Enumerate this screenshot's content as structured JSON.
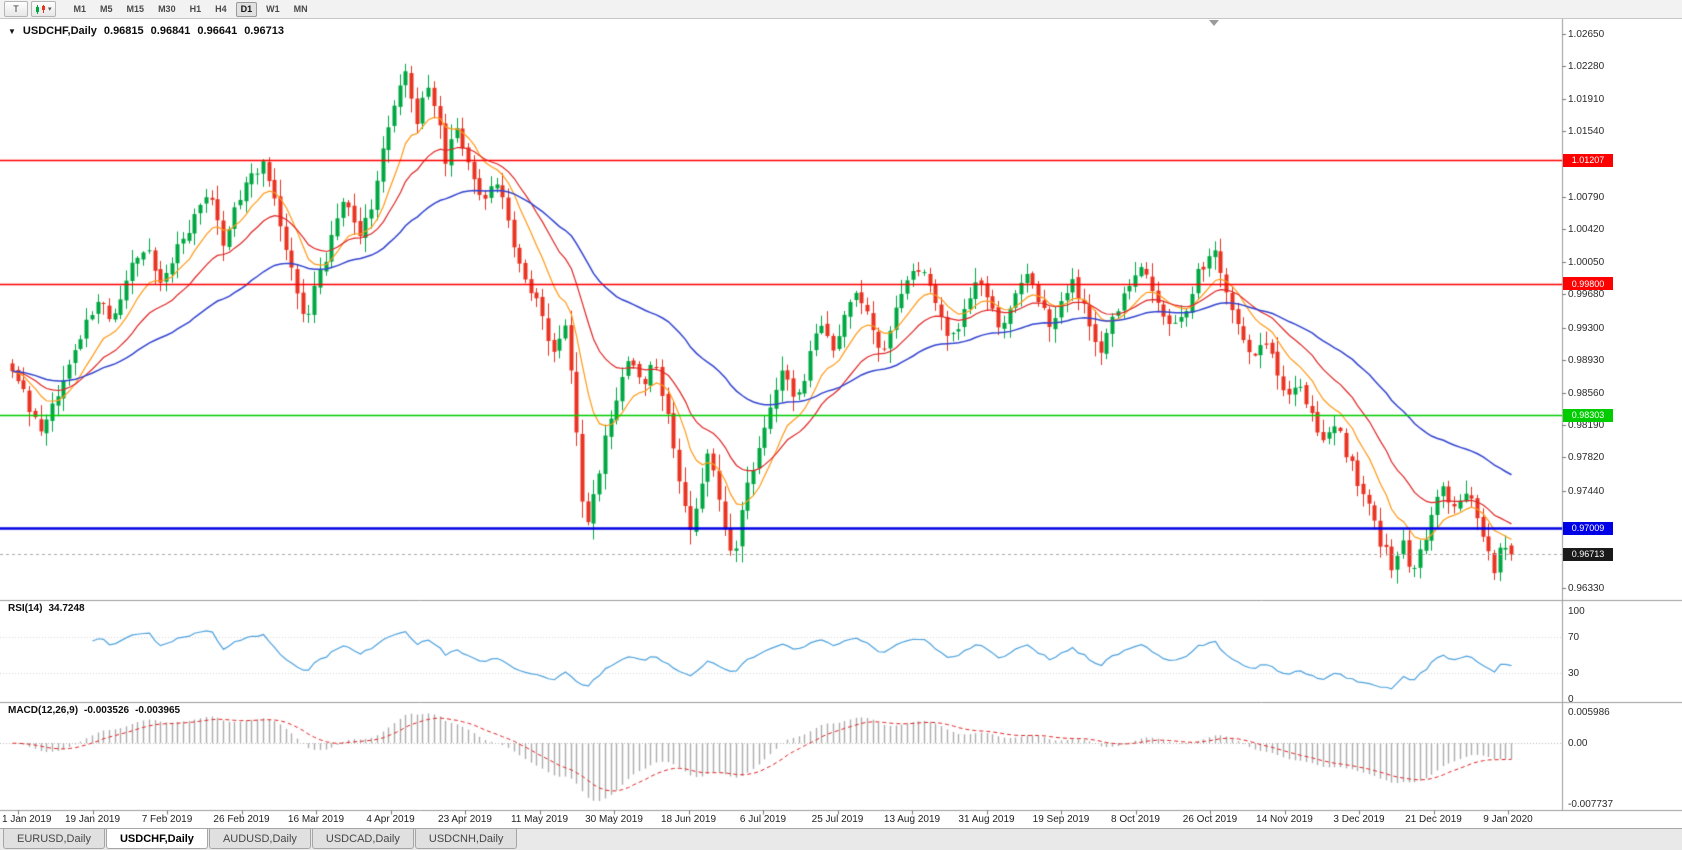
{
  "toolbar": {
    "pointer_label": "T",
    "chart_type_caret": "▾",
    "timeframes": [
      "M1",
      "M5",
      "M15",
      "M30",
      "H1",
      "H4",
      "D1",
      "W1",
      "MN"
    ],
    "active_timeframe": "D1"
  },
  "window": {
    "menu_icon": "▼",
    "symbol_title": "USDCHF,Daily",
    "ohlc": {
      "open": "0.96815",
      "high": "0.96841",
      "low": "0.96641",
      "close": "0.96713"
    }
  },
  "tabs": [
    {
      "label": "EURUSD,Daily",
      "active": false
    },
    {
      "label": "USDCHF,Daily",
      "active": true
    },
    {
      "label": "AUDUSD,Daily",
      "active": false
    },
    {
      "label": "USDCAD,Daily",
      "active": false
    },
    {
      "label": "USDCNH,Daily",
      "active": false
    }
  ],
  "chart_data": {
    "type": "candlestick",
    "symbol": "USDCHF",
    "timeframe": "Daily",
    "bars": 264,
    "seed": 11,
    "noise": 0.0016,
    "wick_noise": 0.0014,
    "candle_up_color": "#00A843",
    "candle_down_color": "#E93323",
    "y_axis": {
      "min": 0.9633,
      "max": 1.0265,
      "ticks": [
        "1.02650",
        "1.02280",
        "1.01910",
        "1.01540",
        "1.00790",
        "1.00420",
        "1.00050",
        "0.99680",
        "0.99300",
        "0.98930",
        "0.98560",
        "0.98190",
        "0.97820",
        "0.97440",
        "0.96330"
      ]
    },
    "x_axis": {
      "ticks": [
        "1 Jan 2019",
        "19 Jan 2019",
        "7 Feb 2019",
        "26 Feb 2019",
        "16 Mar 2019",
        "4 Apr 2019",
        "23 Apr 2019",
        "11 May 2019",
        "30 May 2019",
        "18 Jun 2019",
        "6 Jul 2019",
        "25 Jul 2019",
        "13 Aug 2019",
        "31 Aug 2019",
        "19 Sep 2019",
        "8 Oct 2019",
        "26 Oct 2019",
        "14 Nov 2019",
        "3 Dec 2019",
        "21 Dec 2019",
        "9 Jan 2020"
      ]
    },
    "levels": [
      {
        "value": 1.01207,
        "label": "1.01207",
        "color": "#FF0000",
        "width": 1.6
      },
      {
        "value": 0.998,
        "label": "0.99800",
        "color": "#FF0000",
        "width": 1.6
      },
      {
        "value": 0.98303,
        "label": "0.98303",
        "color": "#00CC00",
        "width": 1.6
      },
      {
        "value": 0.97009,
        "label": "0.97009",
        "color": "#0000E6",
        "width": 2.5
      }
    ],
    "current_price": {
      "value": 0.96713,
      "label": "0.96713",
      "tag_color": "#1a1a1a",
      "line_color": "#aaaaaa"
    },
    "moving_averages": [
      {
        "period": 10,
        "color": "#FF9A18",
        "width": 1.2
      },
      {
        "period": 21,
        "color": "#E02626",
        "width": 1.2
      },
      {
        "period": 50,
        "color": "#3344D0",
        "width": 1.5
      }
    ],
    "last_bar": {
      "o": 0.96815,
      "h": 0.96841,
      "l": 0.96641,
      "c": 0.96713
    },
    "price_waypoints": [
      [
        0.0,
        0.988
      ],
      [
        0.01,
        0.9846
      ],
      [
        0.019,
        0.9812
      ],
      [
        0.032,
        0.9862
      ],
      [
        0.046,
        0.992
      ],
      [
        0.057,
        0.9962
      ],
      [
        0.067,
        0.9936
      ],
      [
        0.079,
        0.9994
      ],
      [
        0.089,
        1.003
      ],
      [
        0.099,
        0.9978
      ],
      [
        0.112,
        1.0024
      ],
      [
        0.124,
        1.007
      ],
      [
        0.132,
        1.0088
      ],
      [
        0.14,
        1.0026
      ],
      [
        0.149,
        1.0064
      ],
      [
        0.159,
        1.0108
      ],
      [
        0.168,
        1.0124
      ],
      [
        0.177,
        1.0058
      ],
      [
        0.186,
        0.9992
      ],
      [
        0.195,
        0.9938
      ],
      [
        0.204,
        0.9988
      ],
      [
        0.214,
        1.0034
      ],
      [
        0.223,
        1.0082
      ],
      [
        0.231,
        1.0028
      ],
      [
        0.24,
        1.0074
      ],
      [
        0.248,
        1.0134
      ],
      [
        0.256,
        1.0194
      ],
      [
        0.263,
        1.0224
      ],
      [
        0.269,
        1.0162
      ],
      [
        0.275,
        1.0206
      ],
      [
        0.282,
        1.0176
      ],
      [
        0.289,
        1.0122
      ],
      [
        0.296,
        1.0162
      ],
      [
        0.304,
        1.012
      ],
      [
        0.314,
        1.0072
      ],
      [
        0.324,
        1.0096
      ],
      [
        0.334,
        1.003
      ],
      [
        0.344,
        0.9984
      ],
      [
        0.354,
        0.9938
      ],
      [
        0.362,
        0.9902
      ],
      [
        0.368,
        0.9936
      ],
      [
        0.374,
        0.986
      ],
      [
        0.379,
        0.9748
      ],
      [
        0.383,
        0.9702
      ],
      [
        0.388,
        0.9748
      ],
      [
        0.395,
        0.9794
      ],
      [
        0.403,
        0.9854
      ],
      [
        0.412,
        0.9892
      ],
      [
        0.42,
        0.9856
      ],
      [
        0.428,
        0.99
      ],
      [
        0.435,
        0.985
      ],
      [
        0.442,
        0.979
      ],
      [
        0.448,
        0.9734
      ],
      [
        0.453,
        0.9696
      ],
      [
        0.458,
        0.9746
      ],
      [
        0.464,
        0.9786
      ],
      [
        0.47,
        0.9744
      ],
      [
        0.476,
        0.9698
      ],
      [
        0.481,
        0.9652
      ],
      [
        0.486,
        0.9722
      ],
      [
        0.492,
        0.9762
      ],
      [
        0.499,
        0.9802
      ],
      [
        0.507,
        0.9844
      ],
      [
        0.515,
        0.9884
      ],
      [
        0.523,
        0.9846
      ],
      [
        0.531,
        0.9892
      ],
      [
        0.539,
        0.9932
      ],
      [
        0.547,
        0.9902
      ],
      [
        0.555,
        0.9942
      ],
      [
        0.563,
        0.9972
      ],
      [
        0.572,
        0.994
      ],
      [
        0.581,
        0.9906
      ],
      [
        0.59,
        0.9952
      ],
      [
        0.599,
        0.9992
      ],
      [
        0.608,
        1.0002
      ],
      [
        0.617,
        0.9952
      ],
      [
        0.626,
        0.9912
      ],
      [
        0.635,
        0.9952
      ],
      [
        0.644,
        0.999
      ],
      [
        0.652,
        0.996
      ],
      [
        0.66,
        0.9922
      ],
      [
        0.668,
        0.9962
      ],
      [
        0.676,
        1.0
      ],
      [
        0.684,
        0.997
      ],
      [
        0.692,
        0.9932
      ],
      [
        0.7,
        0.9962
      ],
      [
        0.708,
        0.999
      ],
      [
        0.717,
        0.994
      ],
      [
        0.726,
        0.9902
      ],
      [
        0.735,
        0.9942
      ],
      [
        0.744,
        0.9976
      ],
      [
        0.754,
        1.0004
      ],
      [
        0.764,
        0.9966
      ],
      [
        0.774,
        0.9922
      ],
      [
        0.784,
        0.9962
      ],
      [
        0.794,
        1.0002
      ],
      [
        0.802,
        1.0022
      ],
      [
        0.81,
        0.9972
      ],
      [
        0.818,
        0.9932
      ],
      [
        0.826,
        0.9892
      ],
      [
        0.834,
        0.9922
      ],
      [
        0.842,
        0.9892
      ],
      [
        0.85,
        0.9852
      ],
      [
        0.858,
        0.9872
      ],
      [
        0.866,
        0.9832
      ],
      [
        0.874,
        0.9802
      ],
      [
        0.882,
        0.9822
      ],
      [
        0.89,
        0.979
      ],
      [
        0.898,
        0.9752
      ],
      [
        0.906,
        0.9722
      ],
      [
        0.913,
        0.9684
      ],
      [
        0.92,
        0.9658
      ],
      [
        0.927,
        0.9684
      ],
      [
        0.934,
        0.9652
      ],
      [
        0.941,
        0.9684
      ],
      [
        0.948,
        0.9722
      ],
      [
        0.955,
        0.9746
      ],
      [
        0.962,
        0.9722
      ],
      [
        0.969,
        0.9746
      ],
      [
        0.976,
        0.972
      ],
      [
        0.983,
        0.9682
      ],
      [
        0.989,
        0.965
      ],
      [
        0.995,
        0.9692
      ],
      [
        1.0,
        0.96713
      ]
    ],
    "rsi": {
      "label": "RSI(14)",
      "value": "34.7248",
      "period": 14,
      "color": "#4FA3DF",
      "scale": [
        "100",
        "70",
        "30",
        "0"
      ],
      "guides": [
        70,
        30
      ]
    },
    "macd": {
      "label": "MACD(12,26,9)",
      "value_main": "-0.003526",
      "value_signal": "-0.003965",
      "fast": 12,
      "slow": 26,
      "signal": 9,
      "hist_color": "#ADADAD",
      "signal_color": "#E02626",
      "scale_top": "0.005986",
      "scale_zero": "0.00",
      "scale_bottom": "-0.007737"
    }
  }
}
